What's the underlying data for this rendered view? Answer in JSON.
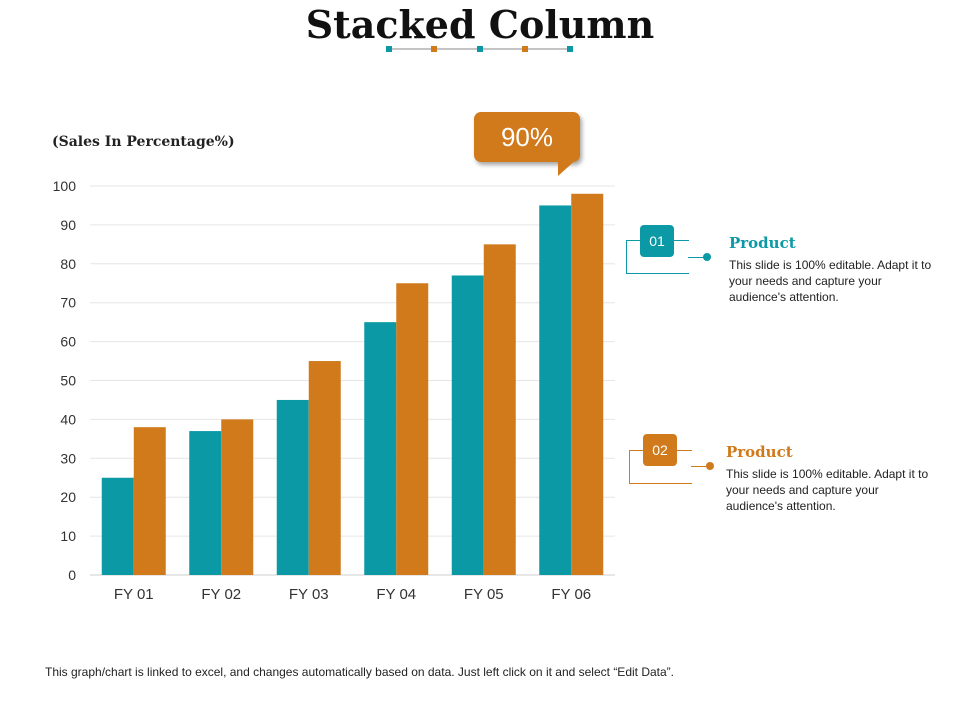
{
  "page": {
    "title": "Stacked Column",
    "footer": "This graph/chart is linked to excel, and changes automatically based on data. Just left click on it and select “Edit Data”."
  },
  "colors": {
    "teal": "#0b9aa5",
    "orange": "#d07a1c",
    "grid": "#e6e6e6"
  },
  "callout": {
    "text": "90%"
  },
  "legend": [
    {
      "number": "01",
      "title": "Product",
      "desc": "This slide is 100% editable. Adapt it to your needs and capture your audience's attention.",
      "color": "#0b9aa5"
    },
    {
      "number": "02",
      "title": "Product",
      "desc": "This slide is 100% editable. Adapt it to your needs and capture your audience's attention.",
      "color": "#d07a1c"
    }
  ],
  "chart_data": {
    "type": "bar",
    "title": "",
    "xlabel": "",
    "ylabel": "(Sales In Percentage%)",
    "categories": [
      "FY 01",
      "FY 02",
      "FY 03",
      "FY 04",
      "FY 05",
      "FY 06"
    ],
    "series": [
      {
        "values": [
          25,
          37,
          45,
          65,
          77,
          95
        ],
        "color": "#0b9aa5"
      },
      {
        "values": [
          38,
          40,
          55,
          75,
          85,
          98
        ],
        "color": "#d07a1c"
      }
    ],
    "ylim": [
      0,
      100
    ],
    "yticks": [
      0,
      10,
      20,
      30,
      40,
      50,
      60,
      70,
      80,
      90,
      100
    ],
    "grid": true,
    "legend": "right"
  }
}
